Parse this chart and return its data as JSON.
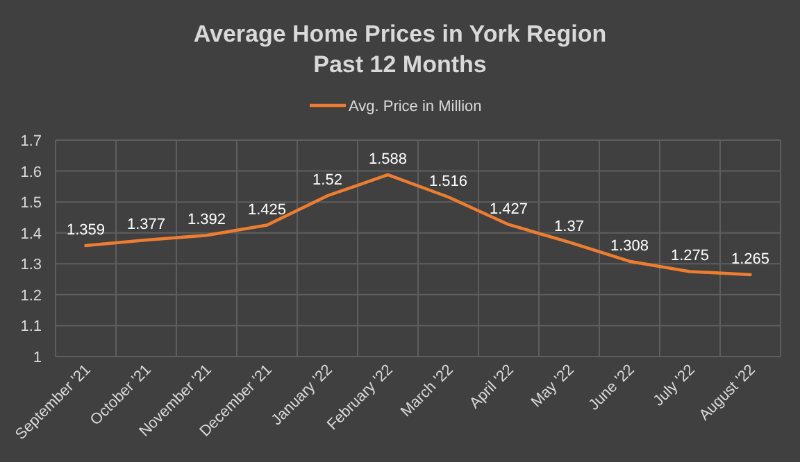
{
  "chart_data": {
    "type": "line",
    "title": "Average Home Prices in York Region\nPast 12 Months",
    "categories": [
      "September '21",
      "October '21",
      "November '21",
      "December '21",
      "January '22",
      "February '22",
      "March '22",
      "April '22",
      "May '22",
      "June '22",
      "July '22",
      "August '22"
    ],
    "series": [
      {
        "name": "Avg. Price in Million",
        "color": "#ed7d31",
        "values": [
          1.359,
          1.377,
          1.392,
          1.425,
          1.52,
          1.588,
          1.516,
          1.427,
          1.37,
          1.308,
          1.275,
          1.265
        ]
      }
    ],
    "ylim": [
      1,
      1.7
    ],
    "yticks": [
      {
        "value": 1,
        "label": "1"
      },
      1.1,
      1.2,
      1.3,
      1.4,
      1.5,
      1.6,
      1.7
    ],
    "grid": true,
    "legend": "top",
    "data_labels": true,
    "marker": "none",
    "line_style": "solid"
  }
}
